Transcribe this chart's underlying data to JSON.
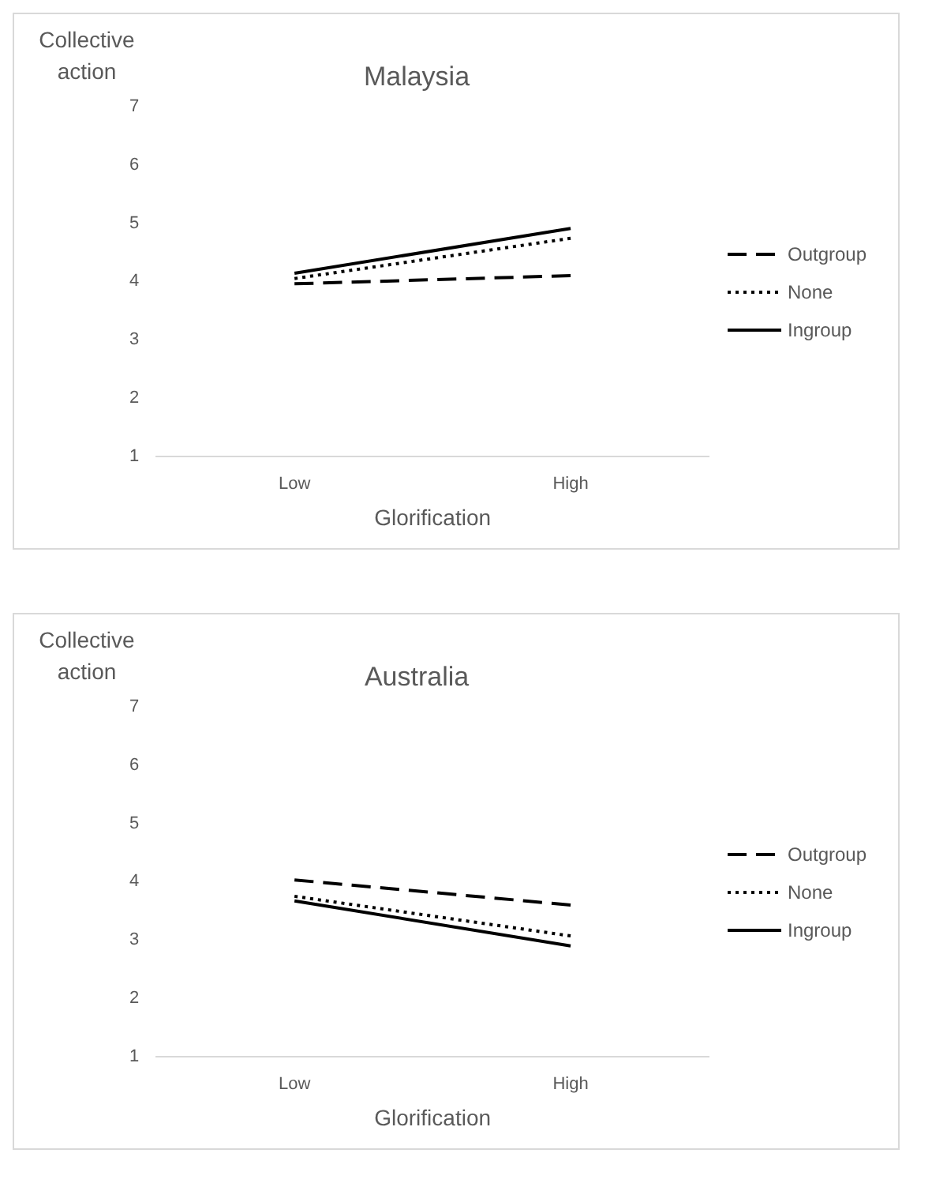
{
  "chart_data": [
    {
      "type": "line",
      "title": "Malaysia",
      "xlabel": "Glorification",
      "ylabel": "Collective action",
      "categories": [
        "Low",
        "High"
      ],
      "ylim": [
        1,
        7
      ],
      "yticks": [
        1,
        2,
        3,
        4,
        5,
        6,
        7
      ],
      "grid": false,
      "legend": "right",
      "marker": "none",
      "series": [
        {
          "name": "Outgroup",
          "color": "#000000",
          "line_style": "dashed",
          "values": [
            3.96,
            4.1
          ]
        },
        {
          "name": "None",
          "color": "#000000",
          "line_style": "dotted",
          "values": [
            4.05,
            4.74
          ]
        },
        {
          "name": "Ingroup",
          "color": "#000000",
          "line_style": "solid",
          "values": [
            4.14,
            4.91
          ]
        }
      ]
    },
    {
      "type": "line",
      "title": "Australia",
      "xlabel": "Glorification",
      "ylabel": "Collective action",
      "categories": [
        "Low",
        "High"
      ],
      "ylim": [
        1,
        7
      ],
      "yticks": [
        1,
        2,
        3,
        4,
        5,
        6,
        7
      ],
      "grid": false,
      "legend": "right",
      "marker": "none",
      "series": [
        {
          "name": "Outgroup",
          "color": "#000000",
          "line_style": "dashed",
          "values": [
            4.03,
            3.6
          ]
        },
        {
          "name": "None",
          "color": "#000000",
          "line_style": "dotted",
          "values": [
            3.75,
            3.07
          ]
        },
        {
          "name": "Ingroup",
          "color": "#000000",
          "line_style": "solid",
          "values": [
            3.67,
            2.9
          ]
        }
      ]
    }
  ]
}
